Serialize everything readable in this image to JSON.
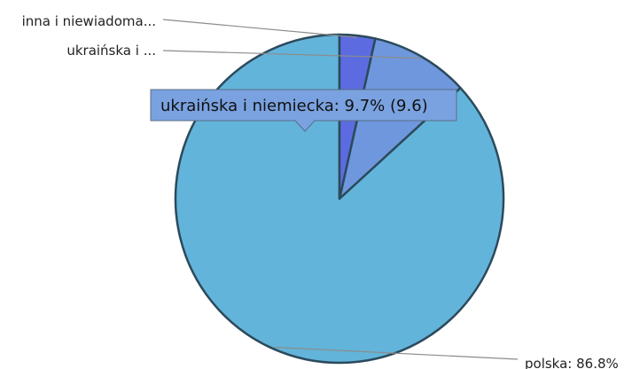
{
  "chart_data": {
    "type": "pie",
    "slices": [
      {
        "name": "polska",
        "value": 86.8,
        "color": "#63b4da",
        "label": "polska: 86.8%"
      },
      {
        "name": "ukraińska i niemiecka",
        "value": 9.7,
        "color": "#6f97dd",
        "label": "ukraińska i ..."
      },
      {
        "name": "inna i niewiadoma",
        "value": 3.5,
        "color": "#5c6ce0",
        "label": "inna i niewiadoma..."
      }
    ],
    "tooltip": {
      "text": "ukraińska i niemiecka: 9.7% (9.6)"
    },
    "legend": "none"
  }
}
